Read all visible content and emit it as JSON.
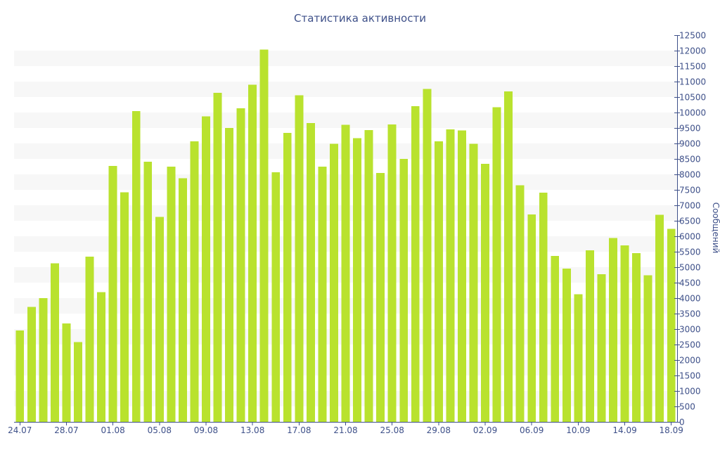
{
  "chart_data": {
    "type": "bar",
    "title": "Статистика активности",
    "ylabel": "Сообщений",
    "xlabel": "",
    "ylim": [
      0,
      12500
    ],
    "y_ticks": [
      0,
      500,
      1000,
      1500,
      2000,
      2500,
      3000,
      3500,
      4000,
      4500,
      5000,
      5500,
      6000,
      6500,
      7000,
      7500,
      8000,
      8500,
      9000,
      9500,
      10000,
      10500,
      11000,
      11500,
      12000,
      12500
    ],
    "y_axis_position": "right",
    "grid": "alternating horizontal bands",
    "bar_color": "#b9e22e",
    "band_color": "#f7f7f7",
    "text_color": "#3e5089",
    "x_tick_labels": [
      "24.07",
      "28.07",
      "01.08",
      "05.08",
      "09.08",
      "13.08",
      "17.08",
      "21.08",
      "25.08",
      "29.08",
      "02.09",
      "06.09",
      "10.09",
      "14.09",
      "18.09"
    ],
    "x_tick_every": 4,
    "categories": [
      "24.07",
      "25.07",
      "26.07",
      "27.07",
      "28.07",
      "29.07",
      "30.07",
      "31.07",
      "01.08",
      "02.08",
      "03.08",
      "04.08",
      "05.08",
      "06.08",
      "07.08",
      "08.08",
      "09.08",
      "10.08",
      "11.08",
      "12.08",
      "13.08",
      "14.08",
      "15.08",
      "16.08",
      "17.08",
      "18.08",
      "19.08",
      "20.08",
      "21.08",
      "22.08",
      "23.08",
      "24.08",
      "25.08",
      "26.08",
      "27.08",
      "28.08",
      "29.08",
      "30.08",
      "31.08",
      "01.09",
      "02.09",
      "03.09",
      "04.09",
      "05.09",
      "06.09",
      "07.09",
      "08.09",
      "09.09",
      "10.09",
      "11.09",
      "12.09",
      "13.09",
      "14.09",
      "15.09",
      "16.09",
      "17.09",
      "18.09"
    ],
    "values": [
      2950,
      3720,
      4000,
      5120,
      3180,
      2580,
      5340,
      4190,
      8270,
      7420,
      10040,
      8410,
      6630,
      8250,
      7870,
      9070,
      9880,
      10640,
      9500,
      10140,
      10900,
      12030,
      8070,
      9340,
      10560,
      9660,
      8250,
      8990,
      9600,
      9170,
      9430,
      8040,
      9610,
      8500,
      10200,
      10760,
      9070,
      9450,
      9420,
      8990,
      8340,
      10170,
      10680,
      7650,
      6710,
      7410,
      5360,
      4960,
      4120,
      5550,
      4770,
      5940,
      5700,
      5450,
      4740,
      6690,
      6240
    ]
  }
}
